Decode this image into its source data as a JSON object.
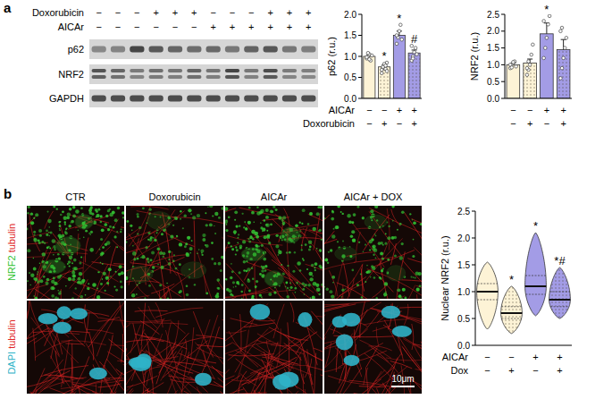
{
  "panel_labels": [
    "a",
    "b"
  ],
  "blot": {
    "treatments": [
      {
        "name": "Doxorubicin",
        "signs": [
          "−",
          "−",
          "−",
          "+",
          "+",
          "+",
          "−",
          "−",
          "−",
          "+",
          "+",
          "+"
        ]
      },
      {
        "name": "AICAr",
        "signs": [
          "−",
          "−",
          "−",
          "−",
          "−",
          "−",
          "+",
          "+",
          "+",
          "+",
          "+",
          "+"
        ]
      }
    ],
    "rows": [
      "p62",
      "NRF2",
      "GAPDH"
    ]
  },
  "panel_a": {
    "conditions": [
      {
        "name": "AICAr",
        "signs": [
          "−",
          "−",
          "+",
          "+"
        ]
      },
      {
        "name": "Doxorubicin",
        "signs": [
          "−",
          "+",
          "−",
          "+"
        ]
      }
    ]
  },
  "micrographs": {
    "columns": [
      "CTR",
      "Doxorubicin",
      "AICAr",
      "AICAr + DOX"
    ],
    "rows": [
      {
        "labels": [
          {
            "text": "NRF2",
            "color": "#33c233"
          },
          {
            "text": "tubulin",
            "color": "#e02424"
          }
        ]
      },
      {
        "labels": [
          {
            "text": "DAPI",
            "color": "#2fb3c8"
          },
          {
            "text": "tubulin",
            "color": "#e02424"
          }
        ]
      }
    ],
    "scale_bar": "10μm"
  },
  "chart_data": [
    {
      "type": "bar",
      "y_label": "p62 (r.u.)",
      "categories": [
        null,
        null,
        null,
        null
      ],
      "values": [
        1.0,
        0.75,
        1.5,
        1.08
      ],
      "errors": [
        0.04,
        0.04,
        0.1,
        0.07
      ],
      "points": [
        [
          0.95,
          1.0,
          1.05,
          0.9,
          1.02,
          0.98,
          1.08,
          0.93
        ],
        [
          0.6,
          0.72,
          0.8,
          0.7,
          0.85,
          0.68,
          0.75,
          0.82,
          0.78,
          0.65
        ],
        [
          1.3,
          1.45,
          1.6,
          1.75,
          1.4,
          1.5
        ],
        [
          0.9,
          1.0,
          1.1,
          1.2,
          1.05,
          1.25,
          0.95
        ]
      ],
      "annotations": [
        null,
        "*",
        "*",
        "#"
      ],
      "colors": [
        "#fdf3d6",
        "#fdf3d6",
        "#a39ce6",
        "#a39ce6"
      ],
      "ylim": [
        0,
        2.0
      ],
      "yticks": [
        {
          "value": 0,
          "label": "0.0"
        },
        {
          "value": 0.5,
          "label": "0.5"
        },
        {
          "value": 1.0,
          "label": "1.0"
        },
        {
          "value": 1.5,
          "label": "1.5"
        },
        {
          "value": 2.0,
          "label": "2.0"
        }
      ],
      "grid": false
    },
    {
      "type": "bar",
      "y_label": "NRF2 (r.u.)",
      "categories": [
        null,
        null,
        null,
        null
      ],
      "values": [
        1.0,
        1.05,
        1.92,
        1.45
      ],
      "errors": [
        0.05,
        0.12,
        0.32,
        0.3
      ],
      "points": [
        [
          0.9,
          1.0,
          1.05,
          1.1,
          0.95,
          1.0,
          0.92,
          1.08
        ],
        [
          0.7,
          0.85,
          1.0,
          1.3,
          1.6,
          0.9,
          1.1
        ],
        [
          1.2,
          1.5,
          1.8,
          2.2,
          2.45,
          2.3
        ],
        [
          0.6,
          0.9,
          1.2,
          1.5,
          1.8,
          2.0,
          2.1
        ]
      ],
      "annotations": [
        null,
        null,
        "*",
        null
      ],
      "colors": [
        "#fdf3d6",
        "#fdf3d6",
        "#a39ce6",
        "#a39ce6"
      ],
      "ylim": [
        0,
        2.5
      ],
      "yticks": [
        {
          "value": 0,
          "label": "0.0"
        },
        {
          "value": 0.5,
          "label": "0.5"
        },
        {
          "value": 1.0,
          "label": "1.0"
        },
        {
          "value": 1.5,
          "label": "1.5"
        },
        {
          "value": 2.0,
          "label": "2.0"
        },
        {
          "value": 2.5,
          "label": "2.5"
        }
      ],
      "grid": false
    },
    {
      "type": "violin",
      "y_label": "Nuclear NRF2 (r.u.)",
      "categories": [
        null,
        null,
        null,
        null
      ],
      "medians": [
        1.0,
        0.6,
        1.1,
        0.85
      ],
      "q1": [
        0.85,
        0.5,
        0.95,
        0.72
      ],
      "q3": [
        1.15,
        0.72,
        1.3,
        1.0
      ],
      "min": [
        0.3,
        0.22,
        0.55,
        0.5
      ],
      "max": [
        1.55,
        1.1,
        2.1,
        1.45
      ],
      "annotations": [
        null,
        "*",
        "*",
        "*#"
      ],
      "colors": [
        "#fdf3d6",
        "#fdf3d6",
        "#a39ce6",
        "#a39ce6"
      ],
      "conditions": [
        {
          "name": "AICAr",
          "signs": [
            "−",
            "−",
            "+",
            "+"
          ]
        },
        {
          "name": "Dox",
          "signs": [
            "−",
            "+",
            "−",
            "+"
          ]
        }
      ],
      "ylim": [
        0,
        2.5
      ],
      "yticks": [
        {
          "value": 0,
          "label": "0.0"
        },
        {
          "value": 0.5,
          "label": "0.5"
        },
        {
          "value": 1.0,
          "label": "1.0"
        },
        {
          "value": 1.5,
          "label": "1.5"
        },
        {
          "value": 2.0,
          "label": "2.0"
        },
        {
          "value": 2.5,
          "label": "2.5"
        }
      ],
      "grid": false
    }
  ]
}
